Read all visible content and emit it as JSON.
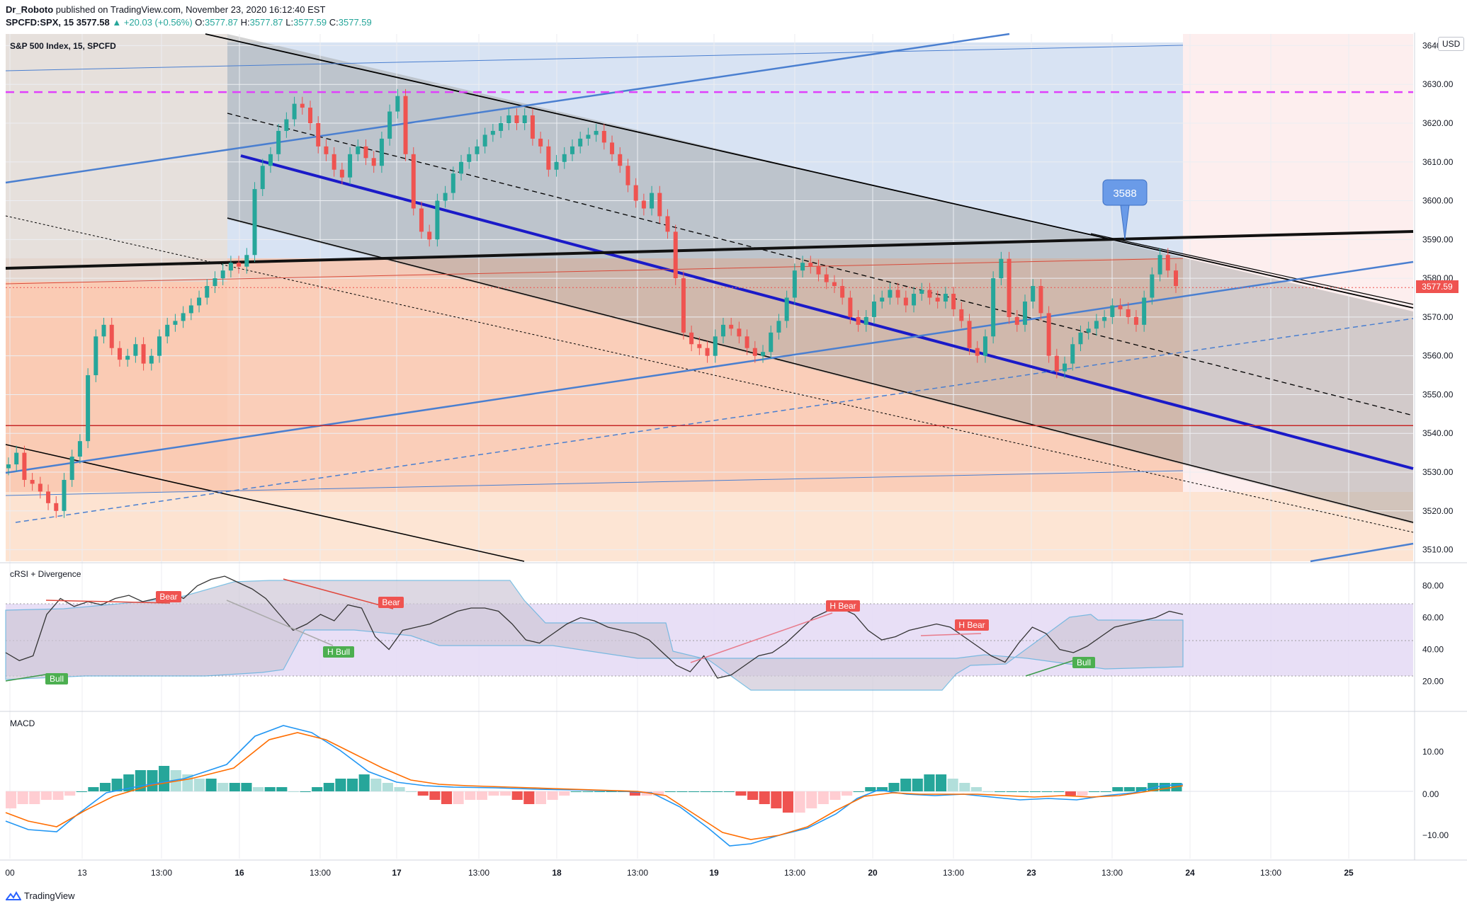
{
  "header": {
    "publisher": "Dr_Roboto",
    "published_text": "published on TradingView.com, November 23, 2020 16:12:40 EST",
    "symbol": "SPCFD:SPX, 15",
    "last": "3577.58",
    "change": "▲ +20.03 (+0.56%)",
    "ohlc_labels": [
      "O:",
      "H:",
      "L:",
      "C:"
    ],
    "ohlc_values": [
      "3577.87",
      "3577.87",
      "3577.59",
      "3577.59"
    ]
  },
  "main_pane": {
    "title": "S&P 500 Index, 15, SPCFD",
    "currency": "USD",
    "price_label": "3577.59",
    "callout": "3588",
    "colors": {
      "up": "#26a69a",
      "down": "#ef5350",
      "magenta": "#e040fb",
      "blue_line": "#1a1ac8",
      "steel": "#4a7fd0"
    }
  },
  "rsi_pane": {
    "title": "cRSI + Divergence",
    "labels": {
      "bear1": "Bear",
      "bear2": "Bear",
      "hbull": "H Bull",
      "bull1": "Bull",
      "hbear1": "H Bear",
      "hbear2": "H Bear",
      "bull2": "Bull"
    }
  },
  "macd_pane": {
    "title": "MACD"
  },
  "axes": {
    "price_ticks": [
      "3640.00",
      "3630.00",
      "3620.00",
      "3610.00",
      "3600.00",
      "3590.00",
      "3580.00",
      "3570.00",
      "3560.00",
      "3550.00",
      "3540.00",
      "3530.00",
      "3520.00",
      "3510.00"
    ],
    "rsi_ticks": [
      "80.00",
      "60.00",
      "40.00",
      "20.00"
    ],
    "macd_ticks": [
      "10.00",
      "0.00",
      "−10.00"
    ],
    "time_ticks": [
      "00",
      "13",
      "13:00",
      "16",
      "13:00",
      "17",
      "13:00",
      "18",
      "13:00",
      "19",
      "13:00",
      "20",
      "13:00",
      "23",
      "13:00",
      "24",
      "13:00",
      "25"
    ]
  },
  "footer": {
    "brand": "TradingView"
  },
  "chart_data": {
    "type": "candlestick",
    "title": "S&P 500 Index, 15, SPCFD",
    "ylim": [
      3507,
      3643
    ],
    "horizontal_levels": [
      {
        "price": 3628,
        "style": "dashed",
        "color": "#e040fb"
      },
      {
        "price": 3542,
        "style": "solid",
        "color": "#c62828"
      }
    ],
    "callout_value": 3588,
    "last_price": 3577.59,
    "candles_close_path": [
      3532,
      3535,
      3528,
      3527,
      3525,
      3522,
      3520,
      3528,
      3534,
      3538,
      3555,
      3565,
      3568,
      3562,
      3559,
      3560,
      3563,
      3558,
      3560,
      3565,
      3568,
      3569,
      3571,
      3573,
      3575,
      3578,
      3580,
      3582,
      3584,
      3583,
      3586,
      3603,
      3609,
      3612,
      3618,
      3621,
      3625,
      3624,
      3620,
      3614,
      3612,
      3608,
      3606,
      3612,
      3614,
      3611,
      3609,
      3616,
      3623,
      3627,
      3612,
      3598,
      3592,
      3590,
      3600,
      3602,
      3607,
      3610,
      3612,
      3614,
      3617,
      3618,
      3620,
      3622,
      3620,
      3622,
      3616,
      3614,
      3608,
      3610,
      3612,
      3614,
      3616,
      3617,
      3618,
      3615,
      3612,
      3609,
      3604,
      3600,
      3598,
      3602,
      3596,
      3592,
      3580,
      3566,
      3563,
      3562,
      3560,
      3565,
      3568,
      3567,
      3565,
      3562,
      3560,
      3561,
      3566,
      3569,
      3575,
      3582,
      3584,
      3583,
      3581,
      3579,
      3578,
      3575,
      3570,
      3568,
      3570,
      3574,
      3575,
      3577,
      3575,
      3573,
      3576,
      3577,
      3575,
      3574,
      3576,
      3572,
      3569,
      3562,
      3560,
      3565,
      3580,
      3585,
      3570,
      3568,
      3574,
      3578,
      3571,
      3560,
      3556,
      3558,
      3563,
      3566,
      3567,
      3569,
      3570,
      3573,
      3572,
      3570,
      3568,
      3575,
      3581,
      3586,
      3582,
      3578
    ],
    "crsi_values": [
      38,
      33,
      36,
      62,
      72,
      67,
      70,
      68,
      72,
      74,
      70,
      72,
      76,
      72,
      80,
      84,
      86,
      82,
      78,
      72,
      62,
      52,
      56,
      62,
      58,
      68,
      66,
      48,
      40,
      52,
      54,
      56,
      60,
      64,
      66,
      66,
      64,
      56,
      46,
      44,
      50,
      56,
      60,
      58,
      54,
      52,
      50,
      46,
      38,
      30,
      26,
      36,
      22,
      24,
      30,
      36,
      38,
      44,
      52,
      60,
      64,
      66,
      62,
      52,
      46,
      48,
      52,
      54,
      56,
      54,
      48,
      42,
      36,
      32,
      44,
      54,
      50,
      40,
      38,
      42,
      48,
      54,
      56,
      58,
      60,
      64,
      62
    ]
  }
}
